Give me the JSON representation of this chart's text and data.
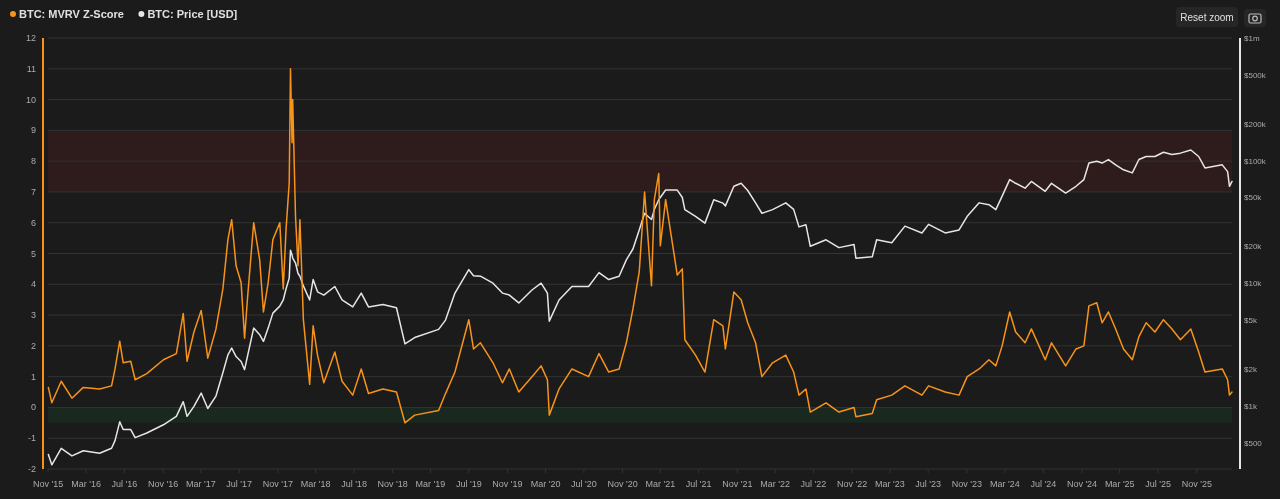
{
  "chart_data": {
    "type": "line",
    "legend": "top left",
    "grid": "y",
    "log": "y2",
    "annotations": [
      "Reset zoom"
    ],
    "xlim": [
      "2015-10-16",
      "2026-02-21"
    ],
    "xticks": [
      {
        "value": "2015-11-01",
        "label": "Nov '15"
      },
      {
        "value": "2016-03-01",
        "label": "Mar '16"
      },
      {
        "value": "2016-07-01",
        "label": "Jul '16"
      },
      {
        "value": "2016-11-01",
        "label": "Nov '16"
      },
      {
        "value": "2017-03-01",
        "label": "Mar '17"
      },
      {
        "value": "2017-07-01",
        "label": "Jul '17"
      },
      {
        "value": "2017-11-01",
        "label": "Nov '17"
      },
      {
        "value": "2018-03-01",
        "label": "Mar '18"
      },
      {
        "value": "2018-07-01",
        "label": "Jul '18"
      },
      {
        "value": "2018-11-01",
        "label": "Nov '18"
      },
      {
        "value": "2019-03-01",
        "label": "Mar '19"
      },
      {
        "value": "2019-07-01",
        "label": "Jul '19"
      },
      {
        "value": "2019-11-01",
        "label": "Nov '19"
      },
      {
        "value": "2020-03-01",
        "label": "Mar '20"
      },
      {
        "value": "2020-07-01",
        "label": "Jul '20"
      },
      {
        "value": "2020-11-01",
        "label": "Nov '20"
      },
      {
        "value": "2021-03-01",
        "label": "Mar '21"
      },
      {
        "value": "2021-07-01",
        "label": "Jul '21"
      },
      {
        "value": "2021-11-01",
        "label": "Nov '21"
      },
      {
        "value": "2022-03-01",
        "label": "Mar '22"
      },
      {
        "value": "2022-07-01",
        "label": "Jul '22"
      },
      {
        "value": "2022-11-01",
        "label": "Nov '22"
      },
      {
        "value": "2023-03-01",
        "label": "Mar '23"
      },
      {
        "value": "2023-07-01",
        "label": "Jul '23"
      },
      {
        "value": "2023-11-01",
        "label": "Nov '23"
      },
      {
        "value": "2024-03-01",
        "label": "Mar '24"
      },
      {
        "value": "2024-07-01",
        "label": "Jul '24"
      },
      {
        "value": "2024-11-01",
        "label": "Nov '24"
      },
      {
        "value": "2025-03-01",
        "label": "Mar '25"
      },
      {
        "value": "2025-07-01",
        "label": "Jul '25"
      },
      {
        "value": "2025-11-01",
        "label": "Nov '25"
      }
    ],
    "ylim": [
      -2,
      12
    ],
    "yticks": [
      -2,
      -1,
      0,
      1,
      2,
      3,
      4,
      5,
      6,
      7,
      8,
      9,
      10,
      11,
      12
    ],
    "y2lim": [
      305,
      1000000
    ],
    "y2ticks": [
      {
        "value": 500,
        "label": "$500"
      },
      {
        "value": 1000,
        "label": "$1k"
      },
      {
        "value": 2000,
        "label": "$2k"
      },
      {
        "value": 5000,
        "label": "$5k"
      },
      {
        "value": 10000,
        "label": "$10k"
      },
      {
        "value": 20000,
        "label": "$20k"
      },
      {
        "value": 50000,
        "label": "$50k"
      },
      {
        "value": 100000,
        "label": "$100k"
      },
      {
        "value": 200000,
        "label": "$200k"
      },
      {
        "value": 500000,
        "label": "$500k"
      },
      {
        "value": 1000000,
        "label": "$1m"
      }
    ],
    "bands": [
      {
        "axis": "y",
        "from": 7,
        "to": 9,
        "color": "#2e1b1b"
      },
      {
        "axis": "y",
        "from": -0.5,
        "to": 0,
        "color": "#19291f"
      }
    ],
    "x": [
      "2015-11-02",
      "2015-11-13",
      "2015-12-13",
      "2016-01-16",
      "2016-02-21",
      "2016-04-13",
      "2016-05-21",
      "2016-06-01",
      "2016-06-16",
      "2016-06-27",
      "2016-07-21",
      "2016-08-04",
      "2016-09-10",
      "2016-11-02",
      "2016-12-13",
      "2017-01-04",
      "2017-01-16",
      "2017-02-07",
      "2017-03-02",
      "2017-03-23",
      "2017-04-18",
      "2017-05-10",
      "2017-05-26",
      "2017-06-07",
      "2017-06-21",
      "2017-07-07",
      "2017-07-18",
      "2017-07-27",
      "2017-08-16",
      "2017-09-04",
      "2017-09-16",
      "2017-10-01",
      "2017-10-16",
      "2017-11-07",
      "2017-11-18",
      "2017-11-27",
      "2017-12-07",
      "2017-12-11",
      "2017-12-16",
      "2017-12-18",
      "2017-12-27",
      "2018-01-04",
      "2018-01-10",
      "2018-01-21",
      "2018-02-10",
      "2018-02-21",
      "2018-03-07",
      "2018-03-27",
      "2018-05-01",
      "2018-05-24",
      "2018-06-27",
      "2018-07-24",
      "2018-08-16",
      "2018-10-01",
      "2018-11-13",
      "2018-12-10",
      "2019-01-10",
      "2019-03-27",
      "2019-04-18",
      "2019-05-18",
      "2019-07-01",
      "2019-07-16",
      "2019-08-07",
      "2019-09-16",
      "2019-10-16",
      "2019-11-07",
      "2019-12-07",
      "2020-01-18",
      "2020-02-16",
      "2020-03-07",
      "2020-03-13",
      "2020-04-13",
      "2020-05-24",
      "2020-07-16",
      "2020-08-18",
      "2020-09-18",
      "2020-10-21",
      "2020-11-13",
      "2020-12-04",
      "2020-12-24",
      "2021-01-10",
      "2021-02-01",
      "2021-02-10",
      "2021-02-24",
      "2021-03-01",
      "2021-03-18",
      "2021-04-24",
      "2021-05-10",
      "2021-05-18",
      "2021-06-21",
      "2021-07-21",
      "2021-08-18",
      "2021-09-16",
      "2021-09-24",
      "2021-10-21",
      "2021-11-13",
      "2021-12-04",
      "2021-12-29",
      "2022-01-18",
      "2022-02-21",
      "2022-04-04",
      "2022-04-29",
      "2022-05-16",
      "2022-06-07",
      "2022-06-21",
      "2022-08-10",
      "2022-09-20",
      "2022-11-07",
      "2022-11-13",
      "2023-01-04",
      "2023-01-18",
      "2023-03-07",
      "2023-04-18",
      "2023-06-11",
      "2023-07-02",
      "2023-08-24",
      "2023-10-07",
      "2023-11-02",
      "2023-12-10",
      "2024-01-10",
      "2024-02-01",
      "2024-02-21",
      "2024-03-16",
      "2024-04-04",
      "2024-05-04",
      "2024-05-24",
      "2024-07-07",
      "2024-07-27",
      "2024-09-10",
      "2024-10-13",
      "2024-11-07",
      "2024-11-23",
      "2024-12-18",
      "2025-01-04",
      "2025-01-24",
      "2025-02-16",
      "2025-03-13",
      "2025-04-10",
      "2025-05-01",
      "2025-05-24",
      "2025-06-21",
      "2025-07-18",
      "2025-08-14",
      "2025-09-10",
      "2025-10-13",
      "2025-11-07",
      "2025-11-27",
      "2026-01-21",
      "2026-02-07",
      "2026-02-13",
      "2026-02-21"
    ],
    "series": [
      {
        "name": "BTC: MVRV Z-Score",
        "color": "#f7931a",
        "values": [
          0.65,
          0.15,
          0.85,
          0.3,
          0.65,
          0.6,
          0.7,
          1.25,
          2.15,
          1.45,
          1.5,
          0.9,
          1.1,
          1.55,
          1.75,
          3.05,
          1.5,
          2.45,
          3.15,
          1.6,
          2.55,
          3.85,
          5.45,
          6.1,
          4.6,
          4.05,
          2.25,
          3.5,
          6.0,
          4.8,
          3.1,
          4.05,
          5.45,
          6.0,
          3.85,
          5.8,
          7.3,
          11.0,
          8.6,
          10.0,
          6.2,
          4.6,
          6.1,
          2.85,
          0.75,
          2.65,
          1.7,
          0.8,
          1.8,
          0.85,
          0.4,
          1.25,
          0.45,
          0.6,
          0.5,
          -0.5,
          -0.25,
          -0.1,
          0.45,
          1.15,
          2.85,
          1.9,
          2.1,
          1.45,
          0.8,
          1.25,
          0.5,
          1.0,
          1.35,
          0.9,
          -0.25,
          0.6,
          1.25,
          1.0,
          1.75,
          1.15,
          1.25,
          2.1,
          3.2,
          4.4,
          7.0,
          3.95,
          6.75,
          7.6,
          5.25,
          6.75,
          4.3,
          4.5,
          2.2,
          1.7,
          1.15,
          2.85,
          2.65,
          1.9,
          3.75,
          3.5,
          2.75,
          2.1,
          1.0,
          1.45,
          1.7,
          1.15,
          0.4,
          0.6,
          -0.15,
          0.15,
          -0.15,
          0,
          -0.3,
          -0.2,
          0.25,
          0.4,
          0.7,
          0.4,
          0.7,
          0.5,
          0.4,
          1.0,
          1.25,
          1.55,
          1.35,
          2.0,
          3.1,
          2.45,
          2.1,
          2.55,
          1.55,
          2.1,
          1.35,
          1.9,
          2.0,
          3.3,
          3.4,
          2.75,
          3.1,
          2.55,
          1.9,
          1.55,
          2.3,
          2.75,
          2.45,
          2.85,
          2.55,
          2.2,
          2.55,
          1.8,
          1.15,
          1.25,
          0.9,
          0.4,
          0.5
        ]
      },
      {
        "name": "BTC: Price [USD]",
        "color": "#e6e6e6",
        "axis": "y2",
        "values": [
          400,
          330,
          450,
          390,
          430,
          410,
          450,
          520,
          740,
          640,
          640,
          550,
          600,
          700,
          820,
          1080,
          820,
          990,
          1270,
          950,
          1200,
          1860,
          2600,
          2960,
          2520,
          2300,
          1970,
          2520,
          4300,
          3800,
          3350,
          4300,
          5700,
          6500,
          7300,
          9000,
          11000,
          18600,
          17000,
          16000,
          14600,
          12000,
          11400,
          9500,
          7300,
          10700,
          8500,
          8000,
          9400,
          7300,
          6400,
          8300,
          6400,
          6700,
          6300,
          3200,
          3600,
          4200,
          5000,
          8300,
          12900,
          11500,
          11400,
          10000,
          8300,
          8000,
          6900,
          8800,
          10000,
          8300,
          4900,
          7300,
          9400,
          9400,
          12200,
          10700,
          11400,
          15500,
          19000,
          27200,
          37200,
          33100,
          40000,
          47900,
          50000,
          57500,
          57500,
          50000,
          39800,
          35100,
          30900,
          47900,
          45000,
          42700,
          61700,
          65300,
          57000,
          45200,
          37200,
          39800,
          45200,
          40000,
          28800,
          30000,
          20000,
          22600,
          19500,
          20700,
          16000,
          16400,
          22600,
          21400,
          29200,
          25700,
          30200,
          25700,
          27200,
          35100,
          45200,
          43700,
          39800,
          51300,
          70000,
          65300,
          59600,
          67600,
          56200,
          65300,
          54300,
          61700,
          70000,
          95500,
          98800,
          95500,
          102000,
          92300,
          84100,
          79400,
          102000,
          108000,
          108000,
          117000,
          112000,
          115000,
          122000,
          108000,
          87100,
          92300,
          81300,
          61700,
          67600
        ]
      }
    ]
  }
}
